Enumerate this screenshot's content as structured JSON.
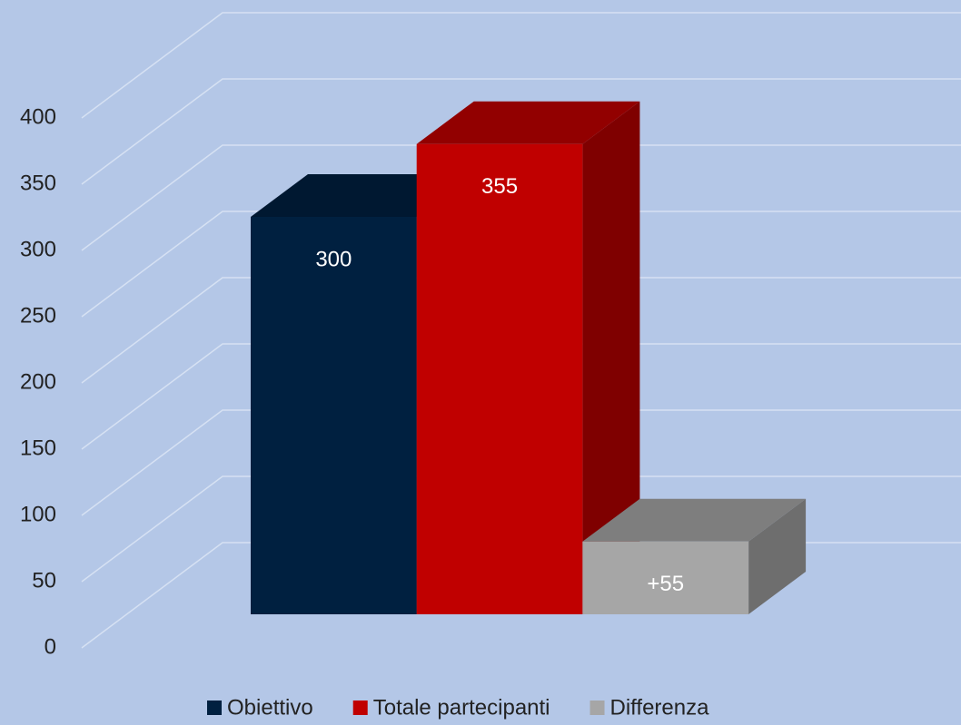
{
  "chart_data": {
    "type": "bar3d",
    "series": [
      {
        "name": "Obiettivo",
        "color": "#002040",
        "values": [
          300
        ]
      },
      {
        "name": "Totale partecipanti",
        "color": "#c00000",
        "values": [
          355
        ]
      },
      {
        "name": "Differenza",
        "color": "#a6a6a6",
        "values": [
          55
        ],
        "value_labels": [
          "+55"
        ]
      }
    ],
    "ylim": [
      0,
      400
    ],
    "yticks": [
      0,
      50,
      100,
      150,
      200,
      250,
      300,
      350,
      400
    ],
    "grid": true
  }
}
